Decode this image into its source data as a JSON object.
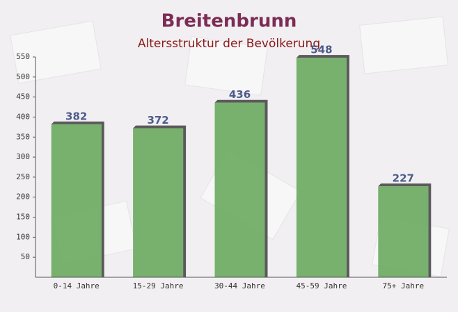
{
  "chart_data": {
    "type": "bar",
    "title": "Breitenbrunn",
    "subtitle": "Altersstruktur der Bevölkerung",
    "categories": [
      "0-14 Jahre",
      "15-29 Jahre",
      "30-44 Jahre",
      "45-59 Jahre",
      "75+ Jahre"
    ],
    "values": [
      382,
      372,
      436,
      548,
      227
    ],
    "color": "#6aa85f",
    "ylim": [
      0,
      550
    ],
    "yticks": [
      50,
      100,
      150,
      200,
      250,
      300,
      350,
      400,
      450,
      500,
      550
    ],
    "grid": false
  }
}
